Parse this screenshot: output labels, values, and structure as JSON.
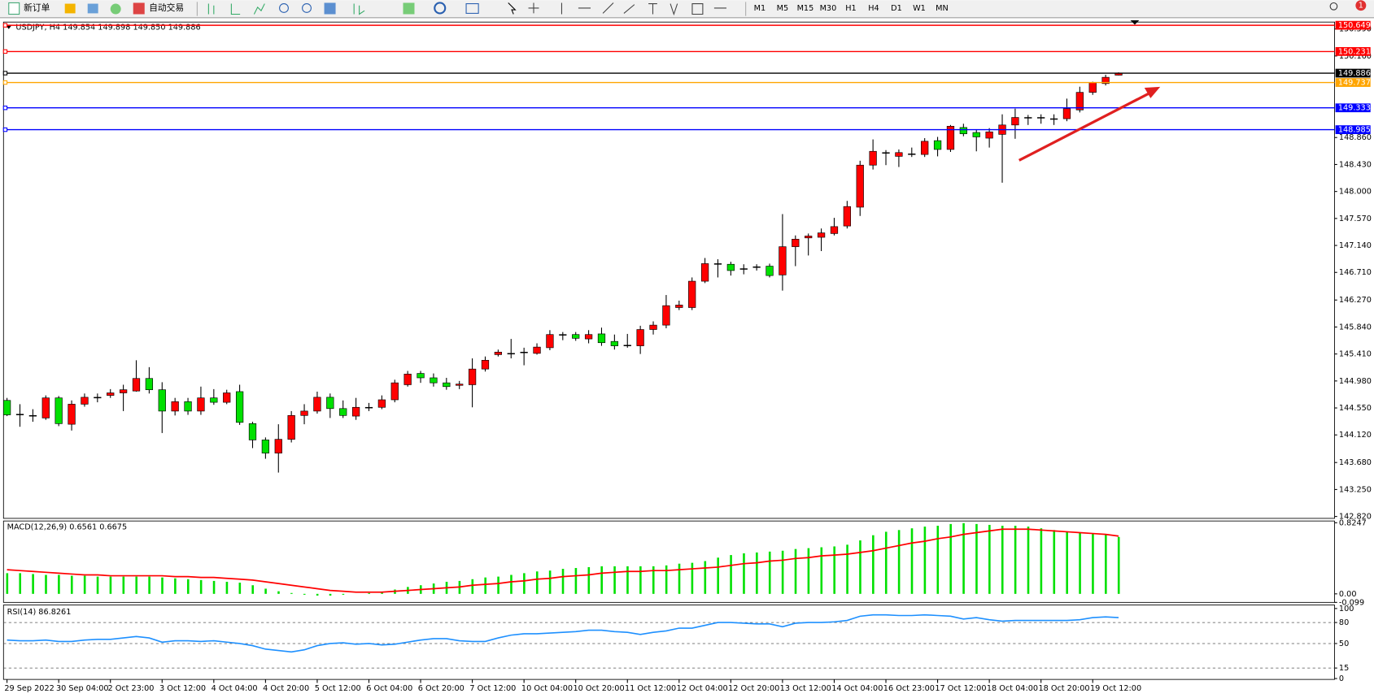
{
  "toolbar": {
    "new_order": "新订单",
    "auto_trading": "自动交易",
    "timeframes": [
      "M1",
      "M5",
      "M15",
      "M30",
      "H1",
      "H4",
      "D1",
      "W1",
      "MN"
    ],
    "notification": "1"
  },
  "chart_data": [
    {
      "type": "candlestick",
      "title": "USDJPY, H4  149.854 149.898 149.850 149.886",
      "categories": [
        "29 Sep 2022",
        null,
        null,
        null,
        "30 Sep 04:00",
        null,
        null,
        null,
        "2 Oct 23:00",
        null,
        null,
        null,
        "3 Oct 12:00",
        null,
        null,
        null,
        "4 Oct 04:00",
        null,
        null,
        null,
        "4 Oct 20:00",
        null,
        null,
        null,
        "5 Oct 12:00",
        null,
        null,
        null,
        "6 Oct 04:00",
        null,
        null,
        null,
        "6 Oct 20:00",
        null,
        null,
        null,
        "7 Oct 12:00",
        null,
        null,
        null,
        "10 Oct 04:00",
        null,
        null,
        null,
        "10 Oct 20:00",
        null,
        null,
        null,
        "11 Oct 12:00",
        null,
        null,
        null,
        "12 Oct 04:00",
        null,
        null,
        null,
        "12 Oct 20:00",
        null,
        null,
        null,
        "13 Oct 12:00",
        null,
        null,
        null,
        "14 Oct 04:00",
        null,
        null,
        null,
        "16 Oct 23:00",
        null,
        null,
        null,
        "17 Oct 12:00",
        null,
        null,
        null,
        "18 Oct 04:00",
        null,
        null,
        null,
        "18 Oct 20:00",
        null,
        null,
        null,
        "19 Oct 12:00",
        null,
        null
      ],
      "open": [
        144.67,
        144.44,
        144.43,
        144.39,
        144.71,
        144.29,
        144.61,
        144.72,
        144.75,
        144.79,
        144.82,
        145.02,
        144.84,
        144.5,
        144.65,
        144.5,
        144.71,
        144.64,
        144.81,
        144.3,
        144.04,
        143.83,
        144.05,
        144.43,
        144.5,
        144.72,
        144.54,
        144.42,
        144.56,
        144.56,
        144.68,
        144.92,
        145.1,
        145.03,
        144.95,
        144.91,
        144.92,
        145.17,
        145.4,
        145.42,
        145.44,
        145.42,
        145.51,
        145.72,
        145.72,
        145.65,
        145.73,
        145.61,
        145.55,
        145.54,
        145.8,
        145.87,
        146.15,
        146.15,
        146.57,
        146.85,
        146.84,
        146.77,
        146.8,
        146.81,
        146.67,
        147.12,
        147.26,
        147.27,
        147.33,
        147.45,
        147.75,
        148.42,
        148.62,
        148.56,
        148.6,
        148.59,
        148.81,
        148.67,
        149.02,
        148.94,
        148.85,
        148.91,
        149.06,
        149.18,
        149.18,
        149.16,
        149.16,
        149.3,
        149.58,
        149.72,
        149.854
      ],
      "high": [
        144.71,
        144.61,
        144.53,
        144.75,
        144.74,
        144.67,
        144.78,
        144.78,
        144.85,
        144.92,
        145.31,
        145.2,
        144.96,
        144.71,
        144.71,
        144.89,
        144.85,
        144.84,
        144.92,
        144.33,
        144.08,
        144.29,
        144.5,
        144.61,
        144.81,
        144.78,
        144.67,
        144.71,
        144.63,
        144.75,
        145.0,
        145.14,
        145.14,
        145.1,
        145.03,
        144.98,
        145.34,
        145.37,
        145.48,
        145.65,
        145.51,
        145.58,
        145.79,
        145.76,
        145.76,
        145.79,
        145.83,
        145.72,
        145.73,
        145.86,
        145.93,
        146.35,
        146.26,
        146.63,
        146.94,
        146.92,
        146.88,
        146.84,
        146.84,
        146.85,
        147.64,
        147.3,
        147.33,
        147.41,
        147.58,
        147.85,
        148.49,
        148.83,
        148.66,
        148.67,
        148.7,
        148.85,
        148.87,
        149.06,
        149.08,
        148.98,
        149.01,
        149.23,
        149.32,
        149.22,
        149.23,
        149.23,
        149.48,
        149.67,
        149.75,
        149.86,
        149.898
      ],
      "low": [
        144.42,
        144.25,
        144.33,
        144.36,
        144.26,
        144.19,
        144.57,
        144.64,
        144.71,
        144.5,
        144.81,
        144.78,
        144.15,
        144.43,
        144.44,
        144.44,
        144.6,
        144.61,
        144.28,
        143.91,
        143.74,
        143.52,
        144.0,
        144.29,
        144.46,
        144.39,
        144.39,
        144.36,
        144.5,
        144.53,
        144.64,
        144.89,
        144.95,
        144.89,
        144.84,
        144.85,
        144.56,
        145.13,
        145.37,
        145.34,
        145.23,
        145.4,
        145.47,
        145.63,
        145.62,
        145.58,
        145.54,
        145.48,
        145.51,
        145.41,
        145.72,
        145.82,
        146.11,
        146.11,
        146.54,
        146.63,
        146.66,
        146.68,
        146.74,
        146.63,
        146.42,
        146.81,
        146.98,
        147.05,
        147.3,
        147.41,
        147.61,
        148.35,
        148.42,
        148.39,
        148.55,
        148.55,
        148.56,
        148.63,
        148.88,
        148.64,
        148.7,
        148.14,
        148.84,
        149.06,
        149.08,
        149.06,
        149.12,
        149.26,
        149.54,
        149.69,
        149.85
      ],
      "close": [
        144.44,
        144.45,
        144.43,
        144.71,
        144.3,
        144.61,
        144.72,
        144.72,
        144.79,
        144.84,
        145.02,
        144.84,
        144.5,
        144.65,
        144.5,
        144.71,
        144.64,
        144.79,
        144.32,
        144.04,
        143.83,
        144.05,
        144.43,
        144.5,
        144.72,
        144.54,
        144.43,
        144.56,
        144.56,
        144.68,
        144.95,
        145.09,
        145.03,
        144.95,
        144.89,
        144.93,
        145.17,
        145.31,
        145.44,
        145.42,
        145.44,
        145.52,
        145.72,
        145.72,
        145.66,
        145.72,
        145.59,
        145.54,
        145.55,
        145.8,
        145.87,
        146.18,
        146.19,
        146.57,
        146.85,
        146.85,
        146.74,
        146.77,
        146.8,
        146.66,
        147.12,
        147.24,
        147.29,
        147.34,
        147.44,
        147.76,
        148.42,
        148.64,
        148.62,
        148.62,
        148.6,
        148.8,
        148.67,
        149.04,
        148.92,
        148.87,
        148.95,
        149.06,
        149.18,
        149.18,
        149.18,
        149.16,
        149.32,
        149.58,
        149.74,
        149.82,
        149.886
      ],
      "up_color": "#ff0000",
      "down_color": "#00e000",
      "ylim": [
        142.79,
        150.7
      ],
      "yticks": [
        {
          "value": 142.82,
          "label": "142.820"
        },
        {
          "value": 143.25,
          "label": "143.250"
        },
        {
          "value": 143.68,
          "label": "143.680"
        },
        {
          "value": 144.12,
          "label": "144.120"
        },
        {
          "value": 144.55,
          "label": "144.550"
        },
        {
          "value": 144.98,
          "label": "144.980"
        },
        {
          "value": 145.41,
          "label": "145.410"
        },
        {
          "value": 145.84,
          "label": "145.840"
        },
        {
          "value": 146.27,
          "label": "146.270"
        },
        {
          "value": 146.71,
          "label": "146.710"
        },
        {
          "value": 147.14,
          "label": "147.140"
        },
        {
          "value": 147.57,
          "label": "147.570"
        },
        {
          "value": 148.0,
          "label": "148.000"
        },
        {
          "value": 148.43,
          "label": "148.430"
        },
        {
          "value": 148.86,
          "label": "148.860"
        },
        {
          "value": 150.16,
          "label": "150.160"
        },
        {
          "value": 150.59,
          "label": "150.590"
        }
      ],
      "levels": [
        {
          "value": 150.649,
          "color": "#ff0000"
        },
        {
          "value": 150.231,
          "color": "#ff0000"
        },
        {
          "value": 149.886,
          "color": "#000000"
        },
        {
          "value": 149.737,
          "color": "#ffa500"
        },
        {
          "value": 149.333,
          "color": "#0000ff"
        },
        {
          "value": 148.985,
          "color": "#0000ff"
        }
      ]
    },
    {
      "type": "macd",
      "title": "MACD(12,26,9) 0.6561 0.6675",
      "histogram": [
        0.24,
        0.24,
        0.23,
        0.22,
        0.22,
        0.21,
        0.21,
        0.2,
        0.2,
        0.2,
        0.2,
        0.2,
        0.19,
        0.18,
        0.17,
        0.16,
        0.15,
        0.14,
        0.13,
        0.1,
        0.06,
        0.03,
        0.01,
        -0.01,
        -0.02,
        -0.02,
        -0.01,
        0.0,
        0.01,
        0.02,
        0.05,
        0.08,
        0.1,
        0.12,
        0.14,
        0.15,
        0.17,
        0.19,
        0.2,
        0.22,
        0.24,
        0.26,
        0.27,
        0.29,
        0.3,
        0.31,
        0.32,
        0.32,
        0.32,
        0.32,
        0.32,
        0.33,
        0.35,
        0.36,
        0.38,
        0.42,
        0.45,
        0.47,
        0.48,
        0.49,
        0.5,
        0.52,
        0.53,
        0.54,
        0.55,
        0.57,
        0.62,
        0.68,
        0.72,
        0.74,
        0.76,
        0.78,
        0.79,
        0.81,
        0.82,
        0.81,
        0.8,
        0.79,
        0.79,
        0.78,
        0.76,
        0.74,
        0.72,
        0.71,
        0.7,
        0.69,
        0.66
      ],
      "signal": [
        0.28,
        0.27,
        0.26,
        0.25,
        0.24,
        0.23,
        0.22,
        0.22,
        0.21,
        0.21,
        0.21,
        0.21,
        0.21,
        0.2,
        0.2,
        0.19,
        0.19,
        0.18,
        0.17,
        0.16,
        0.14,
        0.12,
        0.1,
        0.08,
        0.06,
        0.04,
        0.03,
        0.02,
        0.02,
        0.02,
        0.03,
        0.04,
        0.05,
        0.06,
        0.07,
        0.08,
        0.1,
        0.11,
        0.12,
        0.14,
        0.15,
        0.17,
        0.18,
        0.2,
        0.21,
        0.22,
        0.24,
        0.25,
        0.26,
        0.26,
        0.27,
        0.27,
        0.28,
        0.29,
        0.3,
        0.31,
        0.33,
        0.35,
        0.36,
        0.38,
        0.39,
        0.41,
        0.42,
        0.44,
        0.45,
        0.46,
        0.48,
        0.5,
        0.53,
        0.56,
        0.59,
        0.61,
        0.64,
        0.66,
        0.69,
        0.71,
        0.73,
        0.75,
        0.75,
        0.75,
        0.74,
        0.73,
        0.72,
        0.71,
        0.7,
        0.69,
        0.67
      ],
      "histogram_color": "#00e000",
      "signal_color": "#ff0000",
      "ylim": [
        -0.099,
        0.8247
      ],
      "yticks": [
        {
          "value": 0.8247,
          "label": "0.8247"
        },
        {
          "value": 0,
          "label": "0.00"
        },
        -0.099
      ]
    },
    {
      "type": "rsi",
      "title": "RSI(14) 86.8261",
      "values": [
        55,
        54,
        54,
        55,
        53,
        53,
        55,
        56,
        56,
        58,
        60,
        58,
        52,
        54,
        54,
        53,
        54,
        52,
        50,
        47,
        42,
        40,
        38,
        41,
        47,
        50,
        51,
        49,
        50,
        48,
        49,
        52,
        55,
        57,
        57,
        54,
        53,
        53,
        58,
        62,
        64,
        64,
        65,
        66,
        67,
        69,
        69,
        67,
        66,
        63,
        66,
        68,
        72,
        72,
        76,
        80,
        80,
        79,
        78,
        78,
        74,
        79,
        80,
        80,
        81,
        83,
        89,
        91,
        91,
        90,
        90,
        91,
        90,
        89,
        85,
        87,
        84,
        82,
        83,
        83,
        83,
        83,
        83,
        84,
        87,
        88,
        87
      ],
      "color": "#1e90ff",
      "ylim": [
        0,
        100
      ],
      "yticks": [
        0,
        15,
        50,
        80,
        100
      ],
      "grid": "dashed"
    }
  ]
}
